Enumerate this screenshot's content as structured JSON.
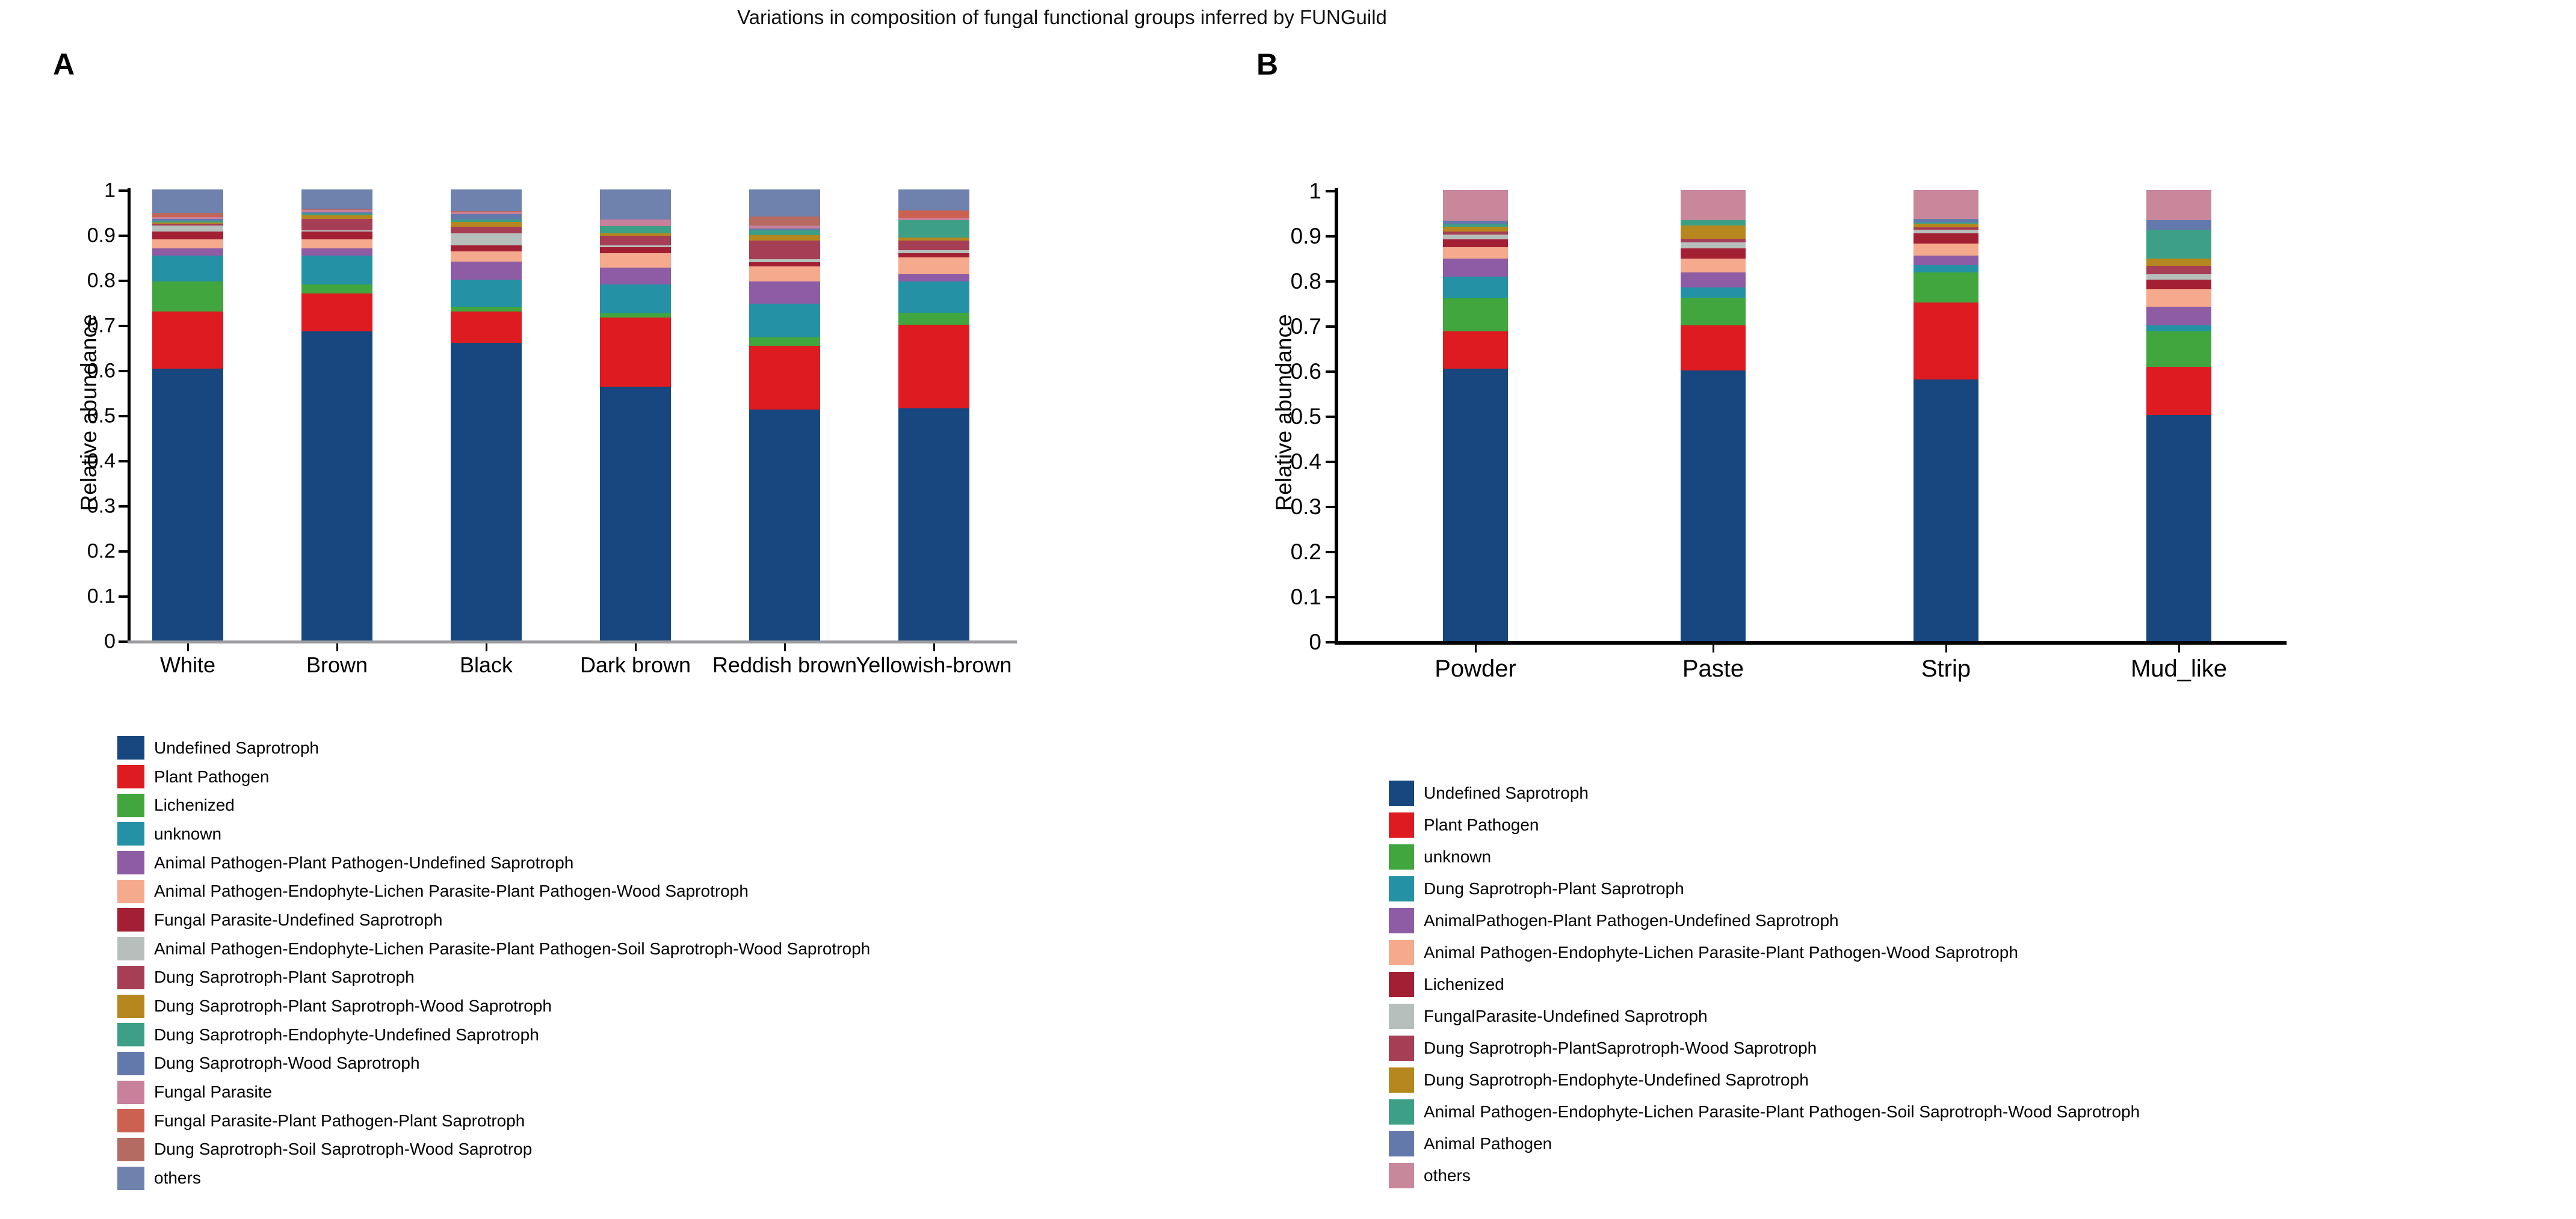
{
  "title": "Variations in composition of fungal functional groups inferred by FUNGuild",
  "panel_letters": [
    "A",
    "B"
  ],
  "chart_data": [
    {
      "type": "bar",
      "stacked": true,
      "panel": "A",
      "ylabel": "Relative abundance",
      "ylim": [
        0,
        1
      ],
      "grid": false,
      "legend_position": "below-left",
      "y_ticks": [
        "1",
        "0.9",
        "0.8",
        "0.7",
        "0.6",
        "0.5",
        "0.4",
        "0.3",
        "0.2",
        "0.1",
        "0"
      ],
      "categories": [
        "White",
        "Brown",
        "Black",
        "Dark brown",
        "Reddish brown",
        "Yellowish-brown"
      ],
      "series": [
        {
          "name": "Undefined Saprotroph",
          "color": "#17477E",
          "values": [
            0.603,
            0.685,
            0.66,
            0.563,
            0.512,
            0.515
          ]
        },
        {
          "name": "Plant Pathogen",
          "color": "#DD1B20",
          "values": [
            0.126,
            0.084,
            0.069,
            0.153,
            0.141,
            0.185
          ]
        },
        {
          "name": "Lichenized",
          "color": "#41A63E",
          "values": [
            0.067,
            0.02,
            0.011,
            0.009,
            0.019,
            0.027
          ]
        },
        {
          "name": "unknown",
          "color": "#2492A4",
          "values": [
            0.057,
            0.064,
            0.06,
            0.064,
            0.075,
            0.069
          ]
        },
        {
          "name": "Animal Pathogen-Plant Pathogen-Undefined Saprotroph",
          "color": "#8E5CA5",
          "values": [
            0.016,
            0.016,
            0.04,
            0.038,
            0.049,
            0.016
          ]
        },
        {
          "name": "Animal Pathogen-Endophyte-Lichen Parasite-Plant Pathogen-Wood Saprotroph",
          "color": "#F5A98D",
          "values": [
            0.02,
            0.02,
            0.023,
            0.032,
            0.033,
            0.037
          ]
        },
        {
          "name": "Fungal Parasite-Undefined Saprotroph",
          "color": "#A32034",
          "values": [
            0.018,
            0.018,
            0.013,
            0.013,
            0.01,
            0.01
          ]
        },
        {
          "name": "Animal Pathogen-Endophyte-Lichen Parasite-Plant Pathogen-Soil Saprotroph-Wood Saprotroph",
          "color": "#B7BFBC",
          "values": [
            0.013,
            0.002,
            0.027,
            0.004,
            0.006,
            0.006
          ]
        },
        {
          "name": "Dung Saprotroph-Plant Saprotroph",
          "color": "#A63E55",
          "values": [
            0.004,
            0.026,
            0.014,
            0.021,
            0.042,
            0.022
          ]
        },
        {
          "name": "Dung Saprotroph-Plant Saprotroph-Wood Saprotroph",
          "color": "#B6871F",
          "values": [
            0.003,
            0.008,
            0.011,
            0.006,
            0.012,
            0.006
          ]
        },
        {
          "name": "Dung Saprotroph-Endophyte-Undefined Saprotroph",
          "color": "#3DA086",
          "values": [
            0.004,
            0.004,
            0.005,
            0.016,
            0.01,
            0.039
          ]
        },
        {
          "name": "Dung Saprotroph-Wood Saprotroph",
          "color": "#6379AB",
          "values": [
            0.003,
            0.002,
            0.012,
            0.0,
            0.004,
            0.0
          ]
        },
        {
          "name": "Fungal Parasite",
          "color": "#C8809B",
          "values": [
            0.004,
            0.005,
            0.004,
            0.014,
            0.007,
            0.004
          ]
        },
        {
          "name": "Fungal Parasite-Plant Pathogen-Plant Saprotroph",
          "color": "#CC6152",
          "values": [
            0.004,
            0.001,
            0.001,
            0.0,
            0.0,
            0.017
          ]
        },
        {
          "name": "Dung Saprotroph-Soil Saprotroph-Wood Saprotrop",
          "color": "#B56A62",
          "values": [
            0.005,
            0.001,
            0.001,
            0.0,
            0.02,
            0.0
          ]
        },
        {
          "name": "others",
          "color": "#6F82AE",
          "values": [
            0.053,
            0.044,
            0.049,
            0.067,
            0.06,
            0.047
          ]
        }
      ]
    },
    {
      "type": "bar",
      "stacked": true,
      "panel": "B",
      "ylabel": "Relative abundance",
      "ylim": [
        0,
        1
      ],
      "grid": false,
      "legend_position": "below-left",
      "y_ticks": [
        "1",
        "0.9",
        "0.8",
        "0.7",
        "0.6",
        "0.5",
        "0.4",
        "0.3",
        "0.2",
        "0.1",
        "0"
      ],
      "categories": [
        "Powder",
        "Paste",
        "Strip",
        "Mud_like"
      ],
      "series": [
        {
          "name": "Undefined Saprotroph",
          "color": "#17477E",
          "values": [
            0.604,
            0.6,
            0.58,
            0.501
          ]
        },
        {
          "name": "Plant Pathogen",
          "color": "#DD1B20",
          "values": [
            0.083,
            0.1,
            0.171,
            0.107
          ]
        },
        {
          "name": "unknown",
          "color": "#41A63E",
          "values": [
            0.073,
            0.061,
            0.066,
            0.079
          ]
        },
        {
          "name": "Dung Saprotroph-Plant Saprotroph",
          "color": "#2492A4",
          "values": [
            0.048,
            0.023,
            0.016,
            0.013
          ]
        },
        {
          "name": "AnimalPathogen-Plant Pathogen-Undefined Saprotroph",
          "color": "#8E5CA5",
          "values": [
            0.04,
            0.033,
            0.022,
            0.041
          ]
        },
        {
          "name": "Animal Pathogen-Endophyte-Lichen Parasite-Plant Pathogen-Wood Saprotroph",
          "color": "#F5A98D",
          "values": [
            0.025,
            0.031,
            0.026,
            0.039
          ]
        },
        {
          "name": "Lichenized",
          "color": "#A32034",
          "values": [
            0.018,
            0.023,
            0.023,
            0.021
          ]
        },
        {
          "name": "FungalParasite-Undefined Saprotroph",
          "color": "#B7BFBC",
          "values": [
            0.01,
            0.013,
            0.008,
            0.012
          ]
        },
        {
          "name": "Dung Saprotroph-PlantSaprotroph-Wood Saprotroph",
          "color": "#A63E55",
          "values": [
            0.007,
            0.007,
            0.005,
            0.018
          ]
        },
        {
          "name": "Dung Saprotroph-Endophyte-Undefined Saprotroph",
          "color": "#B6871F",
          "values": [
            0.011,
            0.03,
            0.008,
            0.016
          ]
        },
        {
          "name": "Animal Pathogen-Endophyte-Lichen Parasite-Plant Pathogen-Soil Saprotroph-Wood Saprotroph",
          "color": "#3DA086",
          "values": [
            0.005,
            0.012,
            0.003,
            0.064
          ]
        },
        {
          "name": "Animal Pathogen",
          "color": "#6379AB",
          "values": [
            0.007,
            0.0,
            0.008,
            0.022
          ]
        },
        {
          "name": "others",
          "color": "#C8879B",
          "values": [
            0.069,
            0.067,
            0.064,
            0.067
          ]
        }
      ]
    }
  ]
}
